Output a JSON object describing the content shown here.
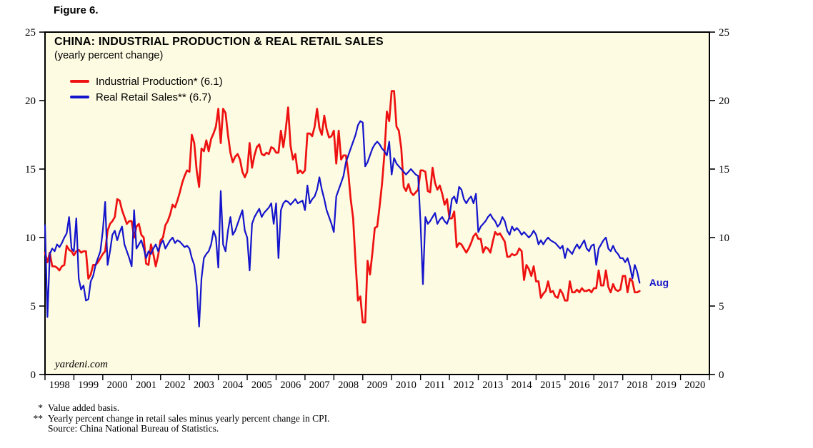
{
  "figure": {
    "label": "Figure 6."
  },
  "chart": {
    "title": "CHINA: INDUSTRIAL PRODUCTION & REAL RETAIL SALES",
    "subtitle": "(yearly percent change)",
    "legend": [
      "Industrial Production* (6.1)",
      "Real Retail Sales** (6.7)"
    ],
    "watermark": "yardeni.com",
    "annotation": "Aug"
  },
  "footnotes": [
    {
      "marker": "*",
      "text": "Value added basis."
    },
    {
      "marker": "**",
      "text": "Yearly percent change in retail sales minus yearly percent change in CPI."
    },
    {
      "marker": "",
      "text": "Source: China National Bureau of Statistics."
    }
  ],
  "chart_data": {
    "type": "line",
    "title": "CHINA: INDUSTRIAL PRODUCTION & REAL RETAIL SALES",
    "subtitle": "(yearly percent change)",
    "xlabel": "",
    "ylabel": "",
    "xlim": [
      1998,
      2021
    ],
    "ylim": [
      0,
      25
    ],
    "yticks": [
      0,
      5,
      10,
      15,
      20,
      25
    ],
    "xtick_labels": [
      "1998",
      "1999",
      "2000",
      "2001",
      "2002",
      "2003",
      "2004",
      "2005",
      "2006",
      "2007",
      "2008",
      "2009",
      "2010",
      "2011",
      "2012",
      "2013",
      "2014",
      "2015",
      "2016",
      "2017",
      "2018",
      "2019",
      "2020"
    ],
    "x_cadence": "monthly",
    "legend_position": "top-left",
    "grid": false,
    "colors": {
      "plot_bg": "#FDFBE1",
      "frame": "#000000",
      "industrial_production": "#EE1111",
      "real_retail_sales": "#1414CC"
    },
    "annotation": {
      "text": "Aug",
      "x": 2018.67,
      "y": 6.7
    },
    "series": [
      {
        "id": "industrial-production",
        "name": "Industrial Production*",
        "latest_value": 6.1,
        "latest_month": "Aug",
        "color": "#EE1111",
        "width": 2.7,
        "start_x": 1998.0,
        "values": [
          8.9,
          8.2,
          8.9,
          7.9,
          7.9,
          7.8,
          7.6,
          7.9,
          8.0,
          9.4,
          9.1,
          9.0,
          8.7,
          9.0,
          9.1,
          8.9,
          9.0,
          9.0,
          7.0,
          7.3,
          8.0,
          8.0,
          8.2,
          8.5,
          8.8,
          9.0,
          10.5,
          11.0,
          11.2,
          11.5,
          12.8,
          12.7,
          12.0,
          11.5,
          11.0,
          11.2,
          11.2,
          10.0,
          10.8,
          11.0,
          10.2,
          10.0,
          8.1,
          8.0,
          9.5,
          8.8,
          7.9,
          8.7,
          9.8,
          10.0,
          10.9,
          11.2,
          11.7,
          12.4,
          12.2,
          12.7,
          13.3,
          14.0,
          14.5,
          14.9,
          14.8,
          17.5,
          16.9,
          14.9,
          13.7,
          16.5,
          16.3,
          17.1,
          16.3,
          17.2,
          17.6,
          18.1,
          19.4,
          16.9,
          19.4,
          19.1,
          17.5,
          16.2,
          15.5,
          15.9,
          16.1,
          15.7,
          14.8,
          14.4,
          14.8,
          16.9,
          15.1,
          16.0,
          16.6,
          16.8,
          16.1,
          16.0,
          16.2,
          16.1,
          16.6,
          16.5,
          16.2,
          16.2,
          17.8,
          16.6,
          17.9,
          19.5,
          16.7,
          15.7,
          16.1,
          14.7,
          14.9,
          14.7,
          14.9,
          17.6,
          17.6,
          17.4,
          18.1,
          19.4,
          18.0,
          17.5,
          18.9,
          17.9,
          17.3,
          17.4,
          17.8,
          15.4,
          17.8,
          15.7,
          16.0,
          16.0,
          14.7,
          12.8,
          11.4,
          8.2,
          5.4,
          5.7,
          3.8,
          3.8,
          8.3,
          7.3,
          8.9,
          10.7,
          10.8,
          12.3,
          13.9,
          16.1,
          19.2,
          18.5,
          20.7,
          20.7,
          18.1,
          17.8,
          16.5,
          13.7,
          13.4,
          13.9,
          13.3,
          13.1,
          13.3,
          13.5,
          14.9,
          14.9,
          14.8,
          13.4,
          13.3,
          15.1,
          14.0,
          13.5,
          13.8,
          13.2,
          12.4,
          12.8,
          11.4,
          11.4,
          11.9,
          9.3,
          9.6,
          9.5,
          9.2,
          8.9,
          9.2,
          9.6,
          10.1,
          10.3,
          9.9,
          9.9,
          8.9,
          9.3,
          9.2,
          8.9,
          9.7,
          10.4,
          10.2,
          10.3,
          10.0,
          9.7,
          8.6,
          8.6,
          8.8,
          8.7,
          8.8,
          9.2,
          9.0,
          6.9,
          8.0,
          7.7,
          7.2,
          7.9,
          6.8,
          6.8,
          5.6,
          5.9,
          6.1,
          6.8,
          6.0,
          6.1,
          5.7,
          5.6,
          6.2,
          5.9,
          5.4,
          5.4,
          6.8,
          6.0,
          6.0,
          6.2,
          6.0,
          6.3,
          6.1,
          6.1,
          6.2,
          6.0,
          6.3,
          6.3,
          7.6,
          6.5,
          6.5,
          7.6,
          6.4,
          6.0,
          6.6,
          6.2,
          6.1,
          6.2,
          7.2,
          7.2,
          6.0,
          7.0,
          6.8,
          6.0,
          6.0,
          6.1
        ]
      },
      {
        "id": "real-retail-sales",
        "name": "Real Retail Sales**",
        "latest_value": 6.7,
        "latest_month": "Aug",
        "color": "#1414CC",
        "width": 2.2,
        "start_x": 1998.0,
        "values": [
          10.9,
          4.2,
          8.8,
          9.2,
          9.0,
          9.5,
          9.3,
          9.6,
          10.0,
          10.3,
          11.5,
          9.2,
          9.0,
          11.4,
          7.0,
          6.2,
          6.5,
          5.4,
          5.5,
          6.8,
          7.2,
          8.0,
          8.5,
          9.0,
          10.5,
          12.6,
          8.0,
          9.0,
          10.2,
          10.5,
          9.8,
          10.4,
          10.8,
          9.5,
          9.0,
          8.5,
          7.9,
          12.0,
          9.2,
          9.5,
          9.8,
          9.2,
          8.5,
          9.0,
          8.8,
          9.2,
          9.5,
          9.0,
          9.5,
          9.8,
          9.2,
          9.5,
          9.8,
          10.0,
          9.6,
          9.8,
          9.7,
          9.5,
          9.3,
          9.4,
          9.2,
          8.5,
          8.0,
          6.5,
          3.5,
          7.0,
          8.5,
          8.8,
          9.0,
          9.5,
          10.5,
          10.0,
          7.8,
          13.4,
          9.5,
          9.0,
          10.5,
          11.5,
          10.2,
          10.5,
          11.0,
          11.5,
          12.0,
          10.5,
          10.0,
          7.6,
          11.0,
          11.5,
          11.8,
          12.1,
          11.5,
          11.8,
          12.0,
          12.2,
          12.5,
          11.0,
          12.5,
          8.5,
          12.0,
          12.5,
          12.7,
          12.6,
          12.4,
          12.6,
          12.8,
          12.5,
          12.6,
          12.7,
          12.0,
          13.8,
          12.5,
          12.8,
          13.0,
          13.5,
          14.4,
          13.5,
          12.8,
          12.0,
          11.5,
          11.0,
          10.4,
          13.0,
          13.5,
          14.0,
          14.5,
          15.5,
          16.0,
          16.5,
          17.0,
          17.5,
          18.2,
          18.5,
          18.4,
          15.2,
          15.5,
          16.0,
          16.5,
          16.8,
          17.0,
          16.8,
          16.5,
          16.3,
          16.0,
          17.0,
          14.6,
          15.8,
          15.4,
          15.2,
          15.0,
          14.8,
          14.6,
          14.8,
          15.0,
          14.8,
          14.6,
          14.5,
          11.0,
          6.6,
          11.5,
          11.0,
          11.2,
          11.5,
          11.8,
          11.0,
          11.3,
          11.5,
          11.2,
          11.0,
          11.5,
          12.8,
          13.0,
          12.5,
          13.7,
          13.5,
          12.8,
          12.5,
          12.8,
          13.0,
          12.5,
          13.2,
          10.4,
          10.8,
          11.0,
          11.2,
          11.5,
          11.7,
          11.4,
          11.2,
          10.8,
          11.0,
          11.5,
          11.2,
          10.5,
          10.2,
          10.8,
          10.5,
          10.7,
          10.5,
          10.2,
          10.4,
          10.2,
          10.0,
          10.2,
          10.5,
          10.2,
          9.5,
          9.8,
          9.5,
          9.8,
          10.0,
          9.8,
          9.7,
          9.6,
          9.4,
          9.2,
          9.4,
          8.5,
          9.2,
          9.0,
          8.8,
          9.2,
          9.5,
          9.2,
          9.5,
          9.8,
          9.2,
          9.0,
          9.4,
          9.5,
          8.0,
          9.2,
          9.5,
          9.8,
          10.0,
          9.2,
          9.0,
          9.4,
          9.0,
          8.8,
          8.5,
          8.5,
          8.2,
          8.5,
          7.9,
          7.0,
          8.0,
          7.5,
          6.7
        ]
      }
    ]
  }
}
